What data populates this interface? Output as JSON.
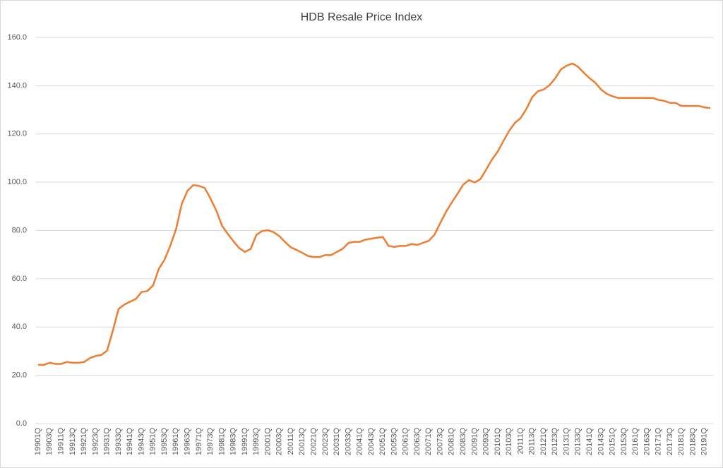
{
  "chart_data": {
    "type": "line",
    "title": "HDB Resale Price Index",
    "categories": [
      "19901Q",
      null,
      "19903Q",
      null,
      "19911Q",
      null,
      "19913Q",
      null,
      "19921Q",
      null,
      "19923Q",
      null,
      "19931Q",
      null,
      "19933Q",
      null,
      "19941Q",
      null,
      "19943Q",
      null,
      "19951Q",
      null,
      "19953Q",
      null,
      "19961Q",
      null,
      "19963Q",
      null,
      "19971Q",
      null,
      "19973Q",
      null,
      "19981Q",
      null,
      "19983Q",
      null,
      "19991Q",
      null,
      "19993Q",
      null,
      "20001Q",
      null,
      "20003Q",
      null,
      "20011Q",
      null,
      "20013Q",
      null,
      "20021Q",
      null,
      "20023Q",
      null,
      "20031Q",
      null,
      "20033Q",
      null,
      "20041Q",
      null,
      "20043Q",
      null,
      "20051Q",
      null,
      "20053Q",
      null,
      "20061Q",
      null,
      "20063Q",
      null,
      "20071Q",
      null,
      "20073Q",
      null,
      "20081Q",
      null,
      "20083Q",
      null,
      "20091Q",
      null,
      "20093Q",
      null,
      "20101Q",
      null,
      "20103Q",
      null,
      "20111Q",
      null,
      "20113Q",
      null,
      "20121Q",
      null,
      "20123Q",
      null,
      "20131Q",
      null,
      "20133Q",
      null,
      "20141Q",
      null,
      "20143Q",
      null,
      "20151Q",
      null,
      "20153Q",
      null,
      "20161Q",
      null,
      "20163Q",
      null,
      "20171Q",
      null,
      "20173Q",
      null,
      "20181Q",
      null,
      "20183Q",
      null,
      "20191Q",
      null
    ],
    "values": [
      24.3,
      24.3,
      25.2,
      24.7,
      24.7,
      25.5,
      25.2,
      25.2,
      25.5,
      27.1,
      28.0,
      28.4,
      30.2,
      38.5,
      47.5,
      49.3,
      50.5,
      51.6,
      54.5,
      54.9,
      57.2,
      64.1,
      67.9,
      73.7,
      80.5,
      91.0,
      96.5,
      98.8,
      98.5,
      97.6,
      93.2,
      88.3,
      82.0,
      78.6,
      75.5,
      72.7,
      71.1,
      72.4,
      78.2,
      79.8,
      80.1,
      79.3,
      77.6,
      75.2,
      73.0,
      71.9,
      70.7,
      69.4,
      69.0,
      69.0,
      69.8,
      69.8,
      71.1,
      72.4,
      74.8,
      75.3,
      75.3,
      76.2,
      76.6,
      77.0,
      77.3,
      73.6,
      73.2,
      73.6,
      73.6,
      74.4,
      74.0,
      74.9,
      75.7,
      78.3,
      83.1,
      87.7,
      91.6,
      95.2,
      99.0,
      100.9,
      99.9,
      101.3,
      105.3,
      109.4,
      112.7,
      117.1,
      121.3,
      124.6,
      126.6,
      130.4,
      135.2,
      137.7,
      138.4,
      140.2,
      143.0,
      146.7,
      148.3,
      149.2,
      147.8,
      145.3,
      143.1,
      141.2,
      138.4,
      136.6,
      135.6,
      134.9,
      134.9,
      134.9,
      134.9,
      134.9,
      134.9,
      134.9,
      134.1,
      133.7,
      132.9,
      132.8,
      131.6,
      131.6,
      131.6,
      131.6,
      131.0,
      130.7
    ],
    "color": "#ed7d31",
    "ylim": [
      0,
      160
    ],
    "yticks": [
      {
        "value": 0,
        "label": "0.0"
      },
      {
        "value": 20,
        "label": "20.0"
      },
      {
        "value": 40,
        "label": "40.0"
      },
      {
        "value": 60,
        "label": "60.0"
      },
      {
        "value": 80,
        "label": "80.0"
      },
      {
        "value": 100,
        "label": "100.0"
      },
      {
        "value": 120,
        "label": "120.0"
      },
      {
        "value": 140,
        "label": "140.0"
      },
      {
        "value": 160,
        "label": "160.0"
      }
    ],
    "grid": true
  }
}
